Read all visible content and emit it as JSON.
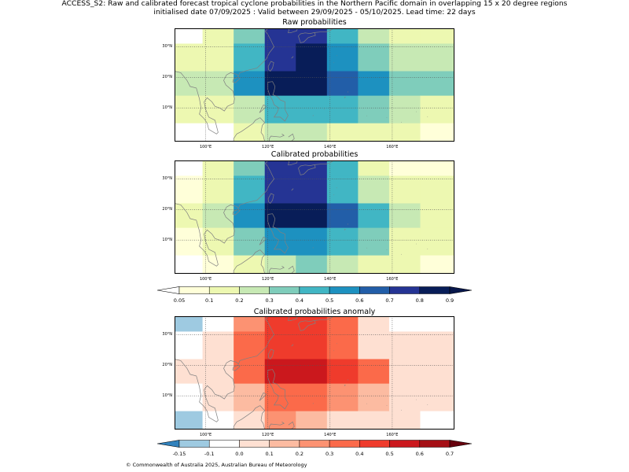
{
  "suptitle_line1": "ACCESS_S2: Raw and calibrated forecast tropical cyclone probabilities in the Northern Pacific domain in overlapping 15 x 20 degree regions",
  "suptitle_line2": "initialised date 07/09/2025 :  Valid between 29/09/2025 - 05/10/2025. Lead time: 22 days",
  "copyright": "© Commonwealth of Australia 2025, Australian Bureau of Meteorology",
  "map": {
    "lon_range": [
      90,
      180
    ],
    "lat_range": [
      -1,
      36
    ],
    "xticks": [
      "100°E",
      "120°E",
      "140°E",
      "160°E"
    ],
    "xtick_values": [
      100,
      120,
      140,
      160
    ],
    "yticks": [
      "10°N",
      "20°N",
      "30°N"
    ],
    "ytick_values": [
      10,
      20,
      30
    ],
    "coastline_color": "#808080",
    "grid_color": "#555555"
  },
  "panels": [
    {
      "title": "Raw probabilities",
      "colormap": "prob",
      "cols": [
        90,
        99,
        109,
        119,
        129,
        139,
        149,
        159,
        169,
        180
      ],
      "rows": [
        36,
        31,
        22,
        14,
        5,
        -1
      ],
      "grid": [
        [
          0.0,
          0.12,
          0.38,
          0.75,
          0.75,
          0.45,
          0.25,
          0.15,
          0.15
        ],
        [
          0.12,
          0.12,
          0.45,
          0.75,
          0.85,
          0.55,
          0.35,
          0.25,
          0.25
        ],
        [
          0.25,
          0.25,
          0.55,
          0.85,
          0.85,
          0.65,
          0.55,
          0.35,
          0.35
        ],
        [
          0.15,
          0.15,
          0.25,
          0.45,
          0.45,
          0.45,
          0.35,
          0.25,
          0.15
        ],
        [
          0.0,
          0.02,
          0.12,
          0.25,
          0.25,
          0.15,
          0.15,
          0.12,
          0.05
        ]
      ]
    },
    {
      "title": "Calibrated probabilities",
      "colormap": "prob",
      "cols": [
        90,
        99,
        109,
        119,
        129,
        139,
        149,
        159,
        169,
        180
      ],
      "rows": [
        36,
        31,
        22,
        14,
        5,
        -1
      ],
      "grid": [
        [
          0.02,
          0.12,
          0.38,
          0.75,
          0.75,
          0.45,
          0.15,
          0.05,
          0.05
        ],
        [
          0.05,
          0.12,
          0.45,
          0.75,
          0.75,
          0.45,
          0.25,
          0.15,
          0.15
        ],
        [
          0.12,
          0.25,
          0.55,
          0.85,
          0.85,
          0.65,
          0.45,
          0.25,
          0.15
        ],
        [
          0.05,
          0.12,
          0.38,
          0.55,
          0.55,
          0.45,
          0.35,
          0.15,
          0.15
        ],
        [
          0.0,
          0.05,
          0.12,
          0.25,
          0.35,
          0.25,
          0.15,
          0.12,
          0.05
        ]
      ]
    },
    {
      "title": "Calibrated probabilities anomaly",
      "colormap": "anom",
      "cols": [
        90,
        99,
        109,
        119,
        129,
        139,
        149,
        159,
        169,
        180
      ],
      "rows": [
        36,
        31,
        22,
        14,
        5,
        -1
      ],
      "grid": [
        [
          -0.15,
          -0.07,
          0.25,
          0.45,
          0.45,
          0.35,
          0.0,
          -0.07,
          -0.07
        ],
        [
          -0.07,
          0.0,
          0.35,
          0.45,
          0.45,
          0.35,
          0.05,
          0.0,
          0.0
        ],
        [
          0.0,
          0.05,
          0.35,
          0.55,
          0.55,
          0.45,
          0.35,
          0.05,
          0.0
        ],
        [
          -0.07,
          0.0,
          0.15,
          0.35,
          0.35,
          0.25,
          0.15,
          0.0,
          0.0
        ],
        [
          -0.15,
          -0.07,
          0.05,
          0.25,
          0.15,
          0.05,
          0.0,
          0.0,
          -0.07
        ]
      ]
    }
  ],
  "colorbars": {
    "prob": {
      "labels": [
        "0.05",
        "0.1",
        "0.2",
        "0.3",
        "0.4",
        "0.5",
        "0.6",
        "0.7",
        "0.8",
        "0.9"
      ],
      "bounds": [
        0.05,
        0.1,
        0.2,
        0.3,
        0.4,
        0.5,
        0.6,
        0.7,
        0.8,
        0.9
      ],
      "under": "#ffffff",
      "over": "#08174b",
      "colors": [
        "#ffffd9",
        "#edf8b1",
        "#c7e9b4",
        "#7fcdbb",
        "#41b6c4",
        "#1d91c0",
        "#225ea8",
        "#253494",
        "#081d58"
      ]
    },
    "anom": {
      "labels": [
        "-0.15",
        "-0.1",
        "0.0",
        "0.1",
        "0.2",
        "0.3",
        "0.4",
        "0.5",
        "0.6",
        "0.7"
      ],
      "bounds": [
        -0.15,
        -0.1,
        0.0,
        0.1,
        0.2,
        0.3,
        0.4,
        0.5,
        0.6,
        0.7
      ],
      "under": "#3182bd",
      "over": "#67000d",
      "colors": [
        "#9ecae1",
        "#ffffff",
        "#fee0d2",
        "#fcbba1",
        "#fc9272",
        "#fb6a4a",
        "#ef3b2c",
        "#cb181d",
        "#a50f15"
      ]
    }
  }
}
